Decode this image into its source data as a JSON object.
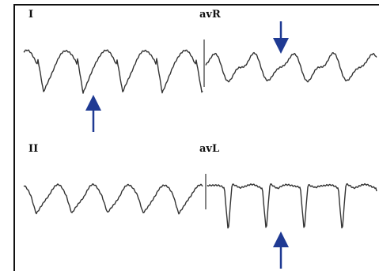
{
  "leads": [
    {
      "label": "I"
    },
    {
      "label": "avR"
    },
    {
      "label": "II"
    },
    {
      "label": "avL"
    }
  ]
}
